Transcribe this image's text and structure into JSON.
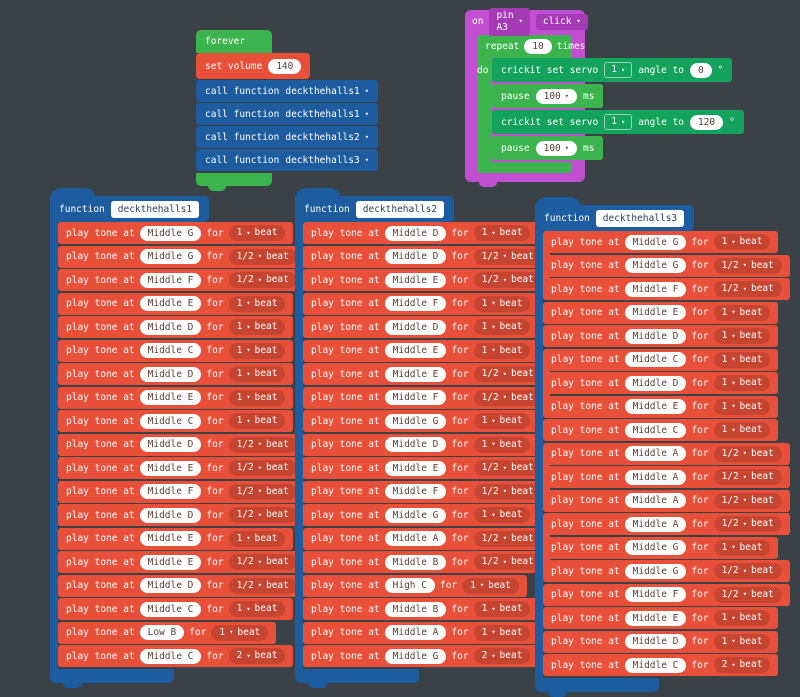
{
  "colors": {
    "background": "#3b4247",
    "loops_green": "#3cb44d",
    "crickit_green": "#14a35c",
    "music_red": "#e8503a",
    "music_pill_red": "#c64530",
    "functions_blue": "#1d5c9e",
    "pins_purple": "#c24fd1",
    "pins_pill_purple": "#a53ab6"
  },
  "labels": {
    "play_tone": "play tone at",
    "for": "for",
    "beat": "beat",
    "function": "function",
    "do": "do",
    "caret": "▾",
    "degree": "°",
    "ms": "ms"
  },
  "forever": {
    "label": "forever",
    "set_volume": {
      "label": "set volume",
      "value": "140"
    },
    "calls": [
      {
        "label": "call function",
        "value": "deckthehalls1"
      },
      {
        "label": "call function",
        "value": "deckthehalls1"
      },
      {
        "label": "call function",
        "value": "deckthehalls2"
      },
      {
        "label": "call function",
        "value": "deckthehalls3"
      }
    ]
  },
  "on_pin": {
    "on_label": "on",
    "pin_dropdown": "pin A3",
    "event_dropdown": "click",
    "repeat": {
      "label_left": "repeat",
      "count": "10",
      "label_right": "times",
      "body": [
        {
          "type": "crickit",
          "label": "crickit set servo",
          "servo": "1",
          "angle_label": "angle to",
          "angle": "0"
        },
        {
          "type": "pause",
          "label": "pause",
          "duration": "100"
        },
        {
          "type": "crickit",
          "label": "crickit set servo",
          "servo": "1",
          "angle_label": "angle to",
          "angle": "120"
        },
        {
          "type": "pause",
          "label": "pause",
          "duration": "100"
        }
      ]
    }
  },
  "functions": [
    {
      "name": "deckthehalls1",
      "tones": [
        {
          "note": "Middle G",
          "beat": "1"
        },
        {
          "note": "Middle G",
          "beat": "1/2"
        },
        {
          "note": "Middle F",
          "beat": "1/2"
        },
        {
          "note": "Middle E",
          "beat": "1"
        },
        {
          "note": "Middle D",
          "beat": "1"
        },
        {
          "note": "Middle C",
          "beat": "1"
        },
        {
          "note": "Middle D",
          "beat": "1"
        },
        {
          "note": "Middle E",
          "beat": "1"
        },
        {
          "note": "Middle C",
          "beat": "1"
        },
        {
          "note": "Middle D",
          "beat": "1/2"
        },
        {
          "note": "Middle E",
          "beat": "1/2"
        },
        {
          "note": "Middle F",
          "beat": "1/2"
        },
        {
          "note": "Middle D",
          "beat": "1/2"
        },
        {
          "note": "Middle E",
          "beat": "1"
        },
        {
          "note": "Middle E",
          "beat": "1/2"
        },
        {
          "note": "Middle D",
          "beat": "1/2"
        },
        {
          "note": "Middle C",
          "beat": "1"
        },
        {
          "note": "Low B",
          "beat": "1"
        },
        {
          "note": "Middle C",
          "beat": "2"
        }
      ]
    },
    {
      "name": "deckthehalls2",
      "tones": [
        {
          "note": "Middle D",
          "beat": "1"
        },
        {
          "note": "Middle D",
          "beat": "1/2"
        },
        {
          "note": "Middle E",
          "beat": "1/2"
        },
        {
          "note": "Middle F",
          "beat": "1"
        },
        {
          "note": "Middle D",
          "beat": "1"
        },
        {
          "note": "Middle E",
          "beat": "1"
        },
        {
          "note": "Middle E",
          "beat": "1/2"
        },
        {
          "note": "Middle F",
          "beat": "1/2"
        },
        {
          "note": "Middle G",
          "beat": "1"
        },
        {
          "note": "Middle D",
          "beat": "1"
        },
        {
          "note": "Middle E",
          "beat": "1/2"
        },
        {
          "note": "Middle F",
          "beat": "1/2"
        },
        {
          "note": "Middle G",
          "beat": "1"
        },
        {
          "note": "Middle A",
          "beat": "1/2"
        },
        {
          "note": "Middle B",
          "beat": "1/2"
        },
        {
          "note": "High C",
          "beat": "1"
        },
        {
          "note": "Middle B",
          "beat": "1"
        },
        {
          "note": "Middle A",
          "beat": "1"
        },
        {
          "note": "Middle G",
          "beat": "2"
        }
      ]
    },
    {
      "name": "deckthehalls3",
      "tones": [
        {
          "note": "Middle G",
          "beat": "1"
        },
        {
          "note": "Middle G",
          "beat": "1/2"
        },
        {
          "note": "Middle F",
          "beat": "1/2"
        },
        {
          "note": "Middle E",
          "beat": "1"
        },
        {
          "note": "Middle D",
          "beat": "1"
        },
        {
          "note": "Middle C",
          "beat": "1"
        },
        {
          "note": "Middle D",
          "beat": "1"
        },
        {
          "note": "Middle E",
          "beat": "1"
        },
        {
          "note": "Middle C",
          "beat": "1"
        },
        {
          "note": "Middle A",
          "beat": "1/2"
        },
        {
          "note": "Middle A",
          "beat": "1/2"
        },
        {
          "note": "Middle A",
          "beat": "1/2"
        },
        {
          "note": "Middle A",
          "beat": "1/2"
        },
        {
          "note": "Middle G",
          "beat": "1"
        },
        {
          "note": "Middle G",
          "beat": "1/2"
        },
        {
          "note": "Middle F",
          "beat": "1/2"
        },
        {
          "note": "Middle E",
          "beat": "1"
        },
        {
          "note": "Middle D",
          "beat": "1"
        },
        {
          "note": "Middle C",
          "beat": "2"
        }
      ]
    }
  ]
}
